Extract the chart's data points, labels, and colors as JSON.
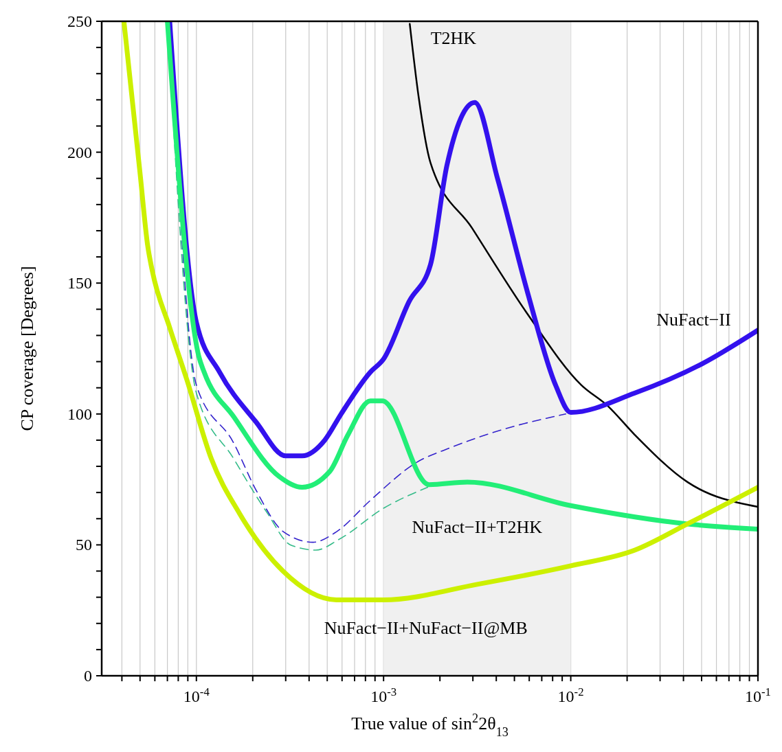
{
  "chart_data": {
    "type": "line",
    "xlabel": "True value of sin$^{2}$2θ$_{13}$",
    "ylabel": "CP coverage [Degrees]",
    "log": "x",
    "xlim": [
      3.12e-05,
      0.1
    ],
    "ylim": [
      0,
      250
    ],
    "xticks": [
      {
        "value": 4e-05,
        "label": null
      },
      {
        "value": 5e-05,
        "label": null
      },
      {
        "value": 6e-05,
        "label": null
      },
      {
        "value": 7e-05,
        "label": null
      },
      {
        "value": 8e-05,
        "label": null
      },
      {
        "value": 9e-05,
        "label": null
      },
      {
        "value": 0.0001,
        "label": "10$^{-4}$"
      },
      {
        "value": 0.0002,
        "label": null
      },
      {
        "value": 0.0003,
        "label": null
      },
      {
        "value": 0.0004,
        "label": null
      },
      {
        "value": 0.0005,
        "label": null
      },
      {
        "value": 0.0006,
        "label": null
      },
      {
        "value": 0.0007,
        "label": null
      },
      {
        "value": 0.0008,
        "label": null
      },
      {
        "value": 0.0009,
        "label": null
      },
      {
        "value": 0.001,
        "label": "10$^{-3}$"
      },
      {
        "value": 0.002,
        "label": null
      },
      {
        "value": 0.003,
        "label": null
      },
      {
        "value": 0.004,
        "label": null
      },
      {
        "value": 0.005,
        "label": null
      },
      {
        "value": 0.006,
        "label": null
      },
      {
        "value": 0.007,
        "label": null
      },
      {
        "value": 0.008,
        "label": null
      },
      {
        "value": 0.009,
        "label": null
      },
      {
        "value": 0.01,
        "label": "10$^{-2}$"
      },
      {
        "value": 0.02,
        "label": null
      },
      {
        "value": 0.03,
        "label": null
      },
      {
        "value": 0.04,
        "label": null
      },
      {
        "value": 0.05,
        "label": null
      },
      {
        "value": 0.06,
        "label": null
      },
      {
        "value": 0.07,
        "label": null
      },
      {
        "value": 0.08,
        "label": null
      },
      {
        "value": 0.09,
        "label": null
      },
      {
        "value": 0.1,
        "label": "10$^{-1}$"
      }
    ],
    "yticks": [
      0,
      {
        "value": 10,
        "label": null
      },
      {
        "value": 20,
        "label": null
      },
      {
        "value": 30,
        "label": null
      },
      {
        "value": 40,
        "label": null
      },
      50,
      {
        "value": 60,
        "label": null
      },
      {
        "value": 70,
        "label": null
      },
      {
        "value": 80,
        "label": null
      },
      {
        "value": 90,
        "label": null
      },
      100,
      {
        "value": 110,
        "label": null
      },
      {
        "value": 120,
        "label": null
      },
      {
        "value": 130,
        "label": null
      },
      {
        "value": 140,
        "label": null
      },
      150,
      {
        "value": 160,
        "label": null
      },
      {
        "value": 170,
        "label": null
      },
      {
        "value": 180,
        "label": null
      },
      {
        "value": 190,
        "label": null
      },
      200,
      {
        "value": 210,
        "label": null
      },
      {
        "value": 220,
        "label": null
      },
      {
        "value": 230,
        "label": null
      },
      {
        "value": 240,
        "label": null
      },
      250
    ],
    "grid": "x",
    "bands": [
      {
        "axis": "x",
        "from": 0.001,
        "to": 0.01,
        "color": "#f0f0f0"
      }
    ],
    "series": [
      {
        "name": "T2HK",
        "color": "#000000",
        "line_style": "solid",
        "x": [
          0.00138,
          0.00154,
          0.00178,
          0.00297,
          0.0059,
          0.0114,
          0.0158,
          0.022,
          0.042,
          0.1
        ],
        "values": [
          249,
          221,
          196,
          171,
          138,
          111,
          103,
          92,
          74,
          64.5
        ]
      },
      {
        "color": "#3322cc",
        "line_style": "dashed",
        "x": [
          7.2e-05,
          0.0001,
          0.000158,
          0.000208,
          0.000292,
          0.00042,
          0.00056,
          0.00085,
          0.0015,
          0.00225,
          0.0043,
          0.0094
        ],
        "values": [
          250,
          111,
          89,
          71,
          55,
          51,
          55,
          67,
          81.5,
          87,
          94,
          100
        ]
      },
      {
        "color": "#33bb88",
        "line_style": "dashed",
        "x": [
          7e-05,
          0.0001,
          0.000158,
          0.00024,
          0.000318,
          0.000435,
          0.000575,
          0.001,
          0.00172
        ],
        "values": [
          250,
          108,
          83,
          62,
          50,
          48,
          52,
          64,
          72
        ]
      },
      {
        "name": "NuFact−II",
        "color": "#3311ee",
        "line_style": "solid",
        "x": [
          7.2e-05,
          0.0001,
          0.000133,
          0.000208,
          0.0003,
          0.000367,
          0.000485,
          0.000593,
          0.00085,
          0.001,
          0.00137,
          0.00178,
          0.00218,
          0.00307,
          0.00406,
          0.0059,
          0.0083,
          0.01,
          0.022,
          0.0498,
          0.1
        ],
        "values": [
          250,
          135,
          116,
          97,
          84,
          84,
          90,
          100,
          116,
          121,
          143,
          157,
          195,
          219,
          190,
          146,
          111,
          100.6,
          108,
          119,
          132
        ]
      },
      {
        "name": "NuFact−II+T2HK",
        "color": "#22ee77",
        "line_style": "solid",
        "x": [
          7e-05,
          0.000103,
          0.00011,
          0.000158,
          0.000278,
          0.000367,
          0.000515,
          0.000645,
          0.00085,
          0.000985,
          0.00175,
          0.0028,
          0.01,
          0.042,
          0.1
        ],
        "values": [
          250,
          122,
          116,
          99,
          76,
          72,
          78,
          92,
          105,
          105,
          73,
          74,
          65,
          58,
          56
        ]
      },
      {
        "name": "NuFact−II+NuFact−II@MB",
        "color": "#ccf000",
        "line_style": "solid",
        "x": [
          4.1e-05,
          5e-05,
          5.5e-05,
          5.8e-05,
          7.2e-05,
          8.9e-05,
          0.00012,
          0.00017,
          0.00029,
          0.00056,
          0.001,
          0.0032,
          0.01,
          0.022,
          0.042,
          0.1
        ],
        "values": [
          250,
          192,
          164,
          155,
          133,
          113,
          83,
          62,
          40,
          29,
          29,
          35,
          42,
          48,
          58,
          72
        ]
      }
    ]
  }
}
